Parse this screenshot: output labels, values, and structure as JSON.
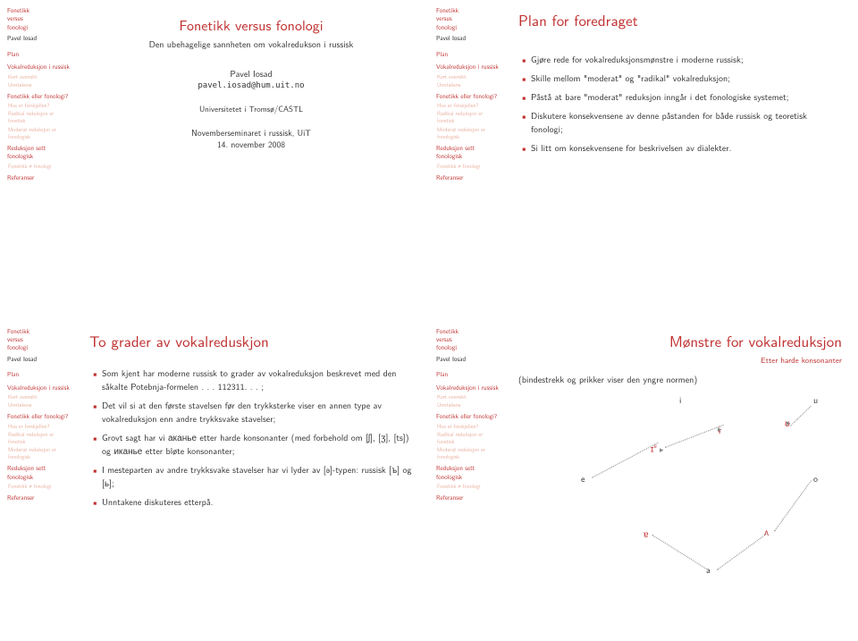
{
  "sidebar": {
    "title": "Fonetikk\nversus\nfonologi",
    "author": "Pavel Iosad",
    "items": [
      {
        "label": "Plan",
        "cls": "sb-sec"
      },
      {
        "label": "Vokalreduksjon i russisk",
        "cls": "sb-sec"
      },
      {
        "label": "Kort oversikt",
        "cls": "sb-sub"
      },
      {
        "label": "Unntakene",
        "cls": "sb-sub"
      },
      {
        "label": "Fonetikk eller fonologi?",
        "cls": "sb-sec"
      },
      {
        "label": "Hva er forskjellen?",
        "cls": "sb-sub"
      },
      {
        "label": "Radikal reduksjon er fonetisk",
        "cls": "sb-sub"
      },
      {
        "label": "Moderat reduksjon er fonologisk",
        "cls": "sb-sub"
      },
      {
        "label": "Reduksjon sett fonologisk",
        "cls": "sb-sec"
      },
      {
        "label": "Fonetikk ≠ fonologi",
        "cls": "sb-sub"
      },
      {
        "label": "Referanser",
        "cls": "sb-sec"
      }
    ]
  },
  "slide1": {
    "title": "Fonetikk versus fonologi",
    "subtitle": "Den ubehagelige sannheten om vokalredukson i russisk",
    "author": "Pavel Iosad",
    "email": "pavel.iosad@hum.uit.no",
    "institution": "Universitetet i Tromsø/CASTL",
    "date1": "Novemberseminaret i russisk, UiT",
    "date2": "14. november 2008"
  },
  "slide2": {
    "title": "Plan for foredraget",
    "bullets": [
      "Gjøre rede for vokalreduksjonsmønstre i moderne russisk;",
      "Skille mellom \"moderat\" og \"radikal\" vokalreduksjon;",
      "Påstå at bare \"moderat\" reduksjon inngår i det fonologiske systemet;",
      "Diskutere konsekvensene av denne påstanden for både russisk og teoretisk fonologi;",
      "Si litt om konsekvensene for beskrivelsen av dialekter."
    ]
  },
  "slide3": {
    "title": "To grader av vokalreduskjon",
    "bullets": [
      "Som kjent har moderne russisk to grader av vokalreduksjon beskrevet med den såkalte Potebnja-formelen . . . 112311. . . ;",
      "Det vil si at den første stavelsen før den trykksterke viser en annen type av vokalreduksjon enn andre trykksvake stavelser;",
      "Grovt sagt har vi аканье etter harde konsonanter (med forbehold om [ʃ], [ʒ], [ts]) og иканье etter bløte konsonanter;",
      "I mesteparten av andre trykksvake stavelser har vi lyder av [ə]-typen: russisk [ъ] og [ь];",
      "Unntakene diskuteres etterpå."
    ]
  },
  "slide4": {
    "title": "Mønstre for vokalreduksjon",
    "subtitle": "Etter harde konsonanter",
    "lead": "(bindestrekk og prikker viser den yngre normen)",
    "labels": {
      "i": "i",
      "u": "u",
      "i_bar": "ɨ",
      "upsilon": "ʊ",
      "i_e": "ɪ",
      "e": "e",
      "o": "o",
      "ae": "ɐ",
      "caret": "ʌ",
      "a": "a"
    }
  },
  "colors": {
    "accent": "#c03030",
    "muted": "#e8b0a0",
    "text": "#333333"
  }
}
